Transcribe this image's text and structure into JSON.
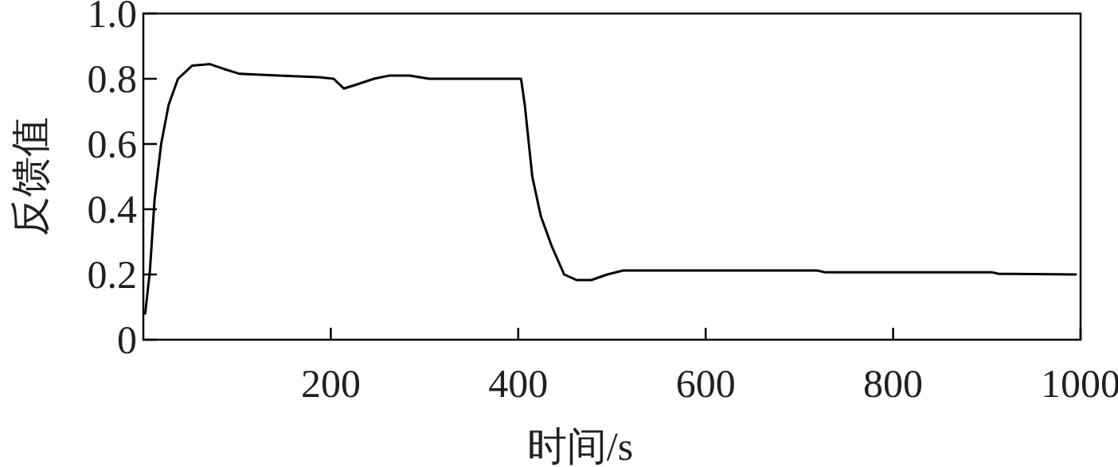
{
  "chart_data": {
    "type": "line",
    "xlabel": "时间/s",
    "ylabel": "反馈值",
    "xlim": [
      0,
      1000
    ],
    "ylim": [
      0,
      1
    ],
    "xticks": [
      200,
      400,
      600,
      800,
      1000
    ],
    "yticks": [
      0,
      0.2,
      0.4,
      0.6,
      {
        "value": 0.8,
        "label": "0.8"
      },
      {
        "value": 1,
        "label": "1.0"
      }
    ],
    "grid": false,
    "marker": "none",
    "line_style": "solid",
    "x": [
      2,
      7,
      12,
      19,
      27,
      37,
      52,
      71,
      86,
      103,
      145,
      187,
      203,
      214,
      225,
      246,
      263,
      284,
      305,
      356,
      403,
      407,
      415,
      424,
      436,
      449,
      462,
      478,
      495,
      512,
      609,
      719,
      727,
      905,
      913,
      995
    ],
    "series": [
      {
        "color": "#000000",
        "values": [
          0.08,
          0.21,
          0.43,
          0.6,
          0.72,
          0.8,
          0.84,
          0.845,
          0.83,
          0.815,
          0.81,
          0.805,
          0.8,
          0.77,
          0.78,
          0.8,
          0.81,
          0.81,
          0.8,
          0.8,
          0.8,
          0.72,
          0.5,
          0.38,
          0.285,
          0.2,
          0.183,
          0.183,
          0.2,
          0.212,
          0.212,
          0.212,
          0.207,
          0.207,
          0.202,
          0.2
        ]
      }
    ]
  }
}
